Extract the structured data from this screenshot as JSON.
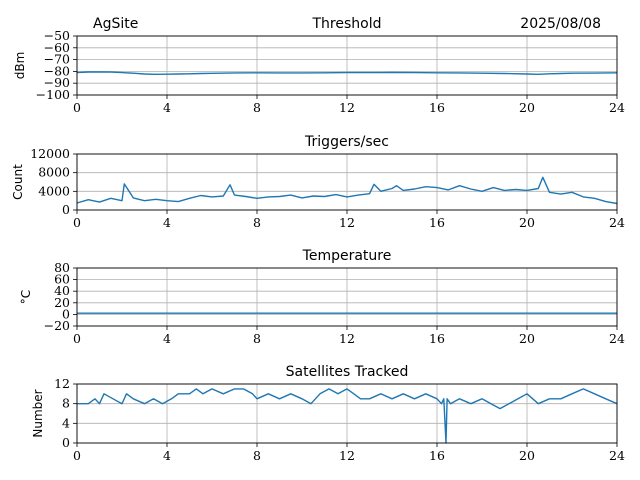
{
  "header": {
    "site": "AgSite",
    "date": "2025/08/08"
  },
  "colors": {
    "series": "#1f77b4",
    "grid": "#b0b0b0"
  },
  "chart_data": [
    {
      "type": "line",
      "title": "Threshold",
      "ylabel": "dBm",
      "xlim": [
        0,
        24
      ],
      "xticks": [
        0,
        4,
        8,
        12,
        16,
        20,
        24
      ],
      "ylim": [
        -100,
        -50
      ],
      "yticks": [
        -100,
        -90,
        -80,
        -70,
        -60,
        -50
      ],
      "grid": true,
      "series": [
        {
          "x": [
            0,
            0.5,
            1,
            1.5,
            2,
            2.5,
            3,
            3.5,
            4,
            4.5,
            5,
            5.5,
            6,
            7,
            8,
            9,
            10,
            11,
            12,
            13,
            14,
            15,
            16,
            17,
            18,
            19,
            20,
            20.5,
            21,
            21.5,
            22,
            23,
            24
          ],
          "y": [
            -81,
            -80.5,
            -80.5,
            -80.6,
            -81,
            -81.5,
            -82.2,
            -82.5,
            -82.4,
            -82.2,
            -82,
            -81.8,
            -81.6,
            -81.3,
            -81.2,
            -81.3,
            -81.3,
            -81.2,
            -81,
            -81,
            -80.9,
            -81,
            -81.2,
            -81.3,
            -81.5,
            -81.8,
            -82.2,
            -82.5,
            -82,
            -81.8,
            -81.5,
            -81.4,
            -81.2
          ]
        }
      ]
    },
    {
      "type": "line",
      "title": "Triggers/sec",
      "ylabel": "Count",
      "xlim": [
        0,
        24
      ],
      "xticks": [
        0,
        4,
        8,
        12,
        16,
        20,
        24
      ],
      "ylim": [
        0,
        12000
      ],
      "yticks": [
        0,
        4000,
        8000,
        12000
      ],
      "grid": true,
      "series": [
        {
          "x": [
            0,
            0.5,
            1,
            1.5,
            2,
            2.1,
            2.5,
            3,
            3.5,
            4,
            4.5,
            5,
            5.5,
            6,
            6.5,
            6.8,
            7,
            7.5,
            8,
            8.5,
            9,
            9.5,
            10,
            10.5,
            11,
            11.5,
            12,
            12.5,
            13,
            13.2,
            13.5,
            14,
            14.2,
            14.5,
            15,
            15.5,
            16,
            16.5,
            17,
            17.5,
            18,
            18.5,
            19,
            19.5,
            20,
            20.5,
            20.7,
            21,
            21.5,
            22,
            22.5,
            23,
            23.5,
            24
          ],
          "y": [
            1500,
            2200,
            1700,
            2500,
            2000,
            5600,
            2600,
            2000,
            2300,
            2000,
            1800,
            2500,
            3100,
            2800,
            3000,
            5400,
            3200,
            2900,
            2500,
            2800,
            2900,
            3200,
            2600,
            3000,
            2900,
            3300,
            2800,
            3200,
            3500,
            5500,
            4000,
            4600,
            5200,
            4200,
            4500,
            5000,
            4800,
            4300,
            5200,
            4500,
            4000,
            4800,
            4200,
            4400,
            4200,
            4600,
            7000,
            3800,
            3400,
            3800,
            2800,
            2500,
            1800,
            1400
          ]
        }
      ]
    },
    {
      "type": "line",
      "title": "Temperature",
      "ylabel": "°C",
      "xlim": [
        0,
        24
      ],
      "xticks": [
        0,
        4,
        8,
        12,
        16,
        20,
        24
      ],
      "ylim": [
        -20,
        80
      ],
      "yticks": [
        -20,
        0,
        20,
        40,
        60,
        80
      ],
      "grid": true,
      "series": [
        {
          "x": [
            0,
            24
          ],
          "y": [
            2,
            2
          ]
        }
      ]
    },
    {
      "type": "line",
      "title": "Satellites Tracked",
      "ylabel": "Number",
      "xlim": [
        0,
        24
      ],
      "xticks": [
        0,
        4,
        8,
        12,
        16,
        20,
        24
      ],
      "ylim": [
        0,
        12
      ],
      "yticks": [
        0,
        4,
        8,
        12
      ],
      "grid": true,
      "series": [
        {
          "x": [
            0,
            0.5,
            0.8,
            1,
            1.2,
            1.6,
            2,
            2.2,
            2.5,
            3,
            3.4,
            3.8,
            4.2,
            4.5,
            5,
            5.3,
            5.6,
            6,
            6.5,
            7,
            7.4,
            7.8,
            8,
            8.5,
            9,
            9.5,
            10,
            10.4,
            10.8,
            11.2,
            11.6,
            12,
            12.3,
            12.6,
            13,
            13.5,
            14,
            14.5,
            15,
            15.5,
            16,
            16.2,
            16.3,
            16.4,
            16.45,
            16.6,
            17,
            17.5,
            18,
            18.4,
            18.8,
            19.2,
            19.6,
            20,
            20.5,
            21,
            21.5,
            22,
            22.5,
            23,
            23.5,
            24
          ],
          "y": [
            8,
            8,
            9,
            8,
            10,
            9,
            8,
            10,
            9,
            8,
            9,
            8,
            9,
            10,
            10,
            11,
            10,
            11,
            10,
            11,
            11,
            10,
            9,
            10,
            9,
            10,
            9,
            8,
            10,
            11,
            10,
            11,
            10,
            9,
            9,
            10,
            9,
            10,
            9,
            10,
            9,
            8,
            9,
            0,
            9,
            8,
            9,
            8,
            9,
            8,
            7,
            8,
            9,
            10,
            8,
            9,
            9,
            10,
            11,
            10,
            9,
            8
          ]
        }
      ]
    }
  ]
}
